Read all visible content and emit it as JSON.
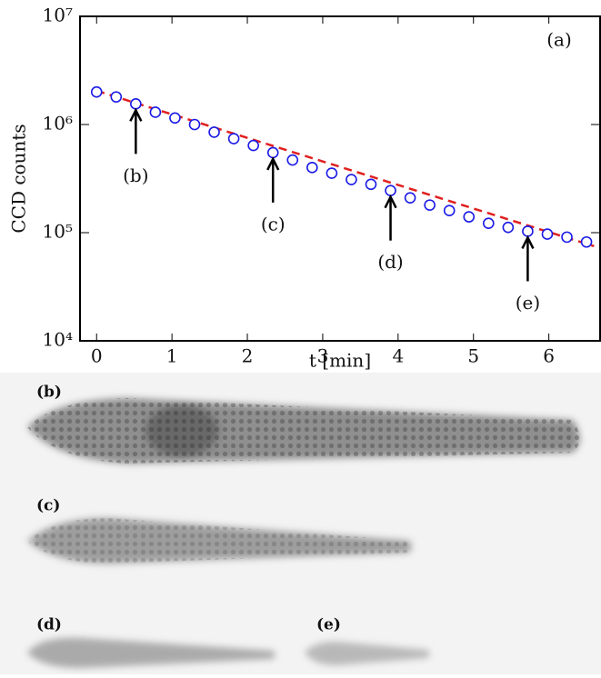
{
  "chart_data": {
    "type": "scatter",
    "panel_label": "(a)",
    "xlabel": "t [min]",
    "ylabel": "CCD counts",
    "xlim": [
      -0.22,
      6.68
    ],
    "ylim": [
      10000,
      10000000
    ],
    "log_y": true,
    "xticks": [
      0,
      1,
      2,
      3,
      4,
      5,
      6
    ],
    "yticks": [
      {
        "value": 10000,
        "label": "10⁴"
      },
      {
        "value": 100000,
        "label": "10⁵"
      },
      {
        "value": 1000000,
        "label": "10⁶"
      },
      {
        "value": 10000000,
        "label": "10⁷"
      }
    ],
    "x": [
      0,
      0.26,
      0.52,
      0.78,
      1.04,
      1.3,
      1.56,
      1.82,
      2.08,
      2.34,
      2.6,
      2.86,
      3.12,
      3.38,
      3.64,
      3.9,
      4.16,
      4.42,
      4.68,
      4.94,
      5.2,
      5.46,
      5.72,
      5.98,
      6.24,
      6.5
    ],
    "series": [
      {
        "color": "#1a1ae6",
        "values": [
          2000000,
          1800000,
          1550000,
          1300000,
          1150000,
          1000000,
          850000,
          740000,
          640000,
          550000,
          470000,
          400000,
          355000,
          310000,
          280000,
          245000,
          210000,
          180000,
          160000,
          140000,
          122000,
          112000,
          103000,
          97000,
          91000,
          82000
        ]
      }
    ],
    "fit": {
      "x": [
        0,
        6.6
      ],
      "values": [
        2050000,
        75000
      ],
      "color": "#e02020"
    },
    "annotations": [
      {
        "text": "(b)",
        "x": 0.52,
        "y": 1550000
      },
      {
        "text": "(c)",
        "x": 2.34,
        "y": 550000
      },
      {
        "text": "(d)",
        "x": 3.9,
        "y": 245000
      },
      {
        "text": "(e)",
        "x": 5.72,
        "y": 103000
      }
    ]
  },
  "panels": [
    {
      "label": "(b)"
    },
    {
      "label": "(c)"
    },
    {
      "label": "(d)"
    },
    {
      "label": "(e)"
    }
  ]
}
